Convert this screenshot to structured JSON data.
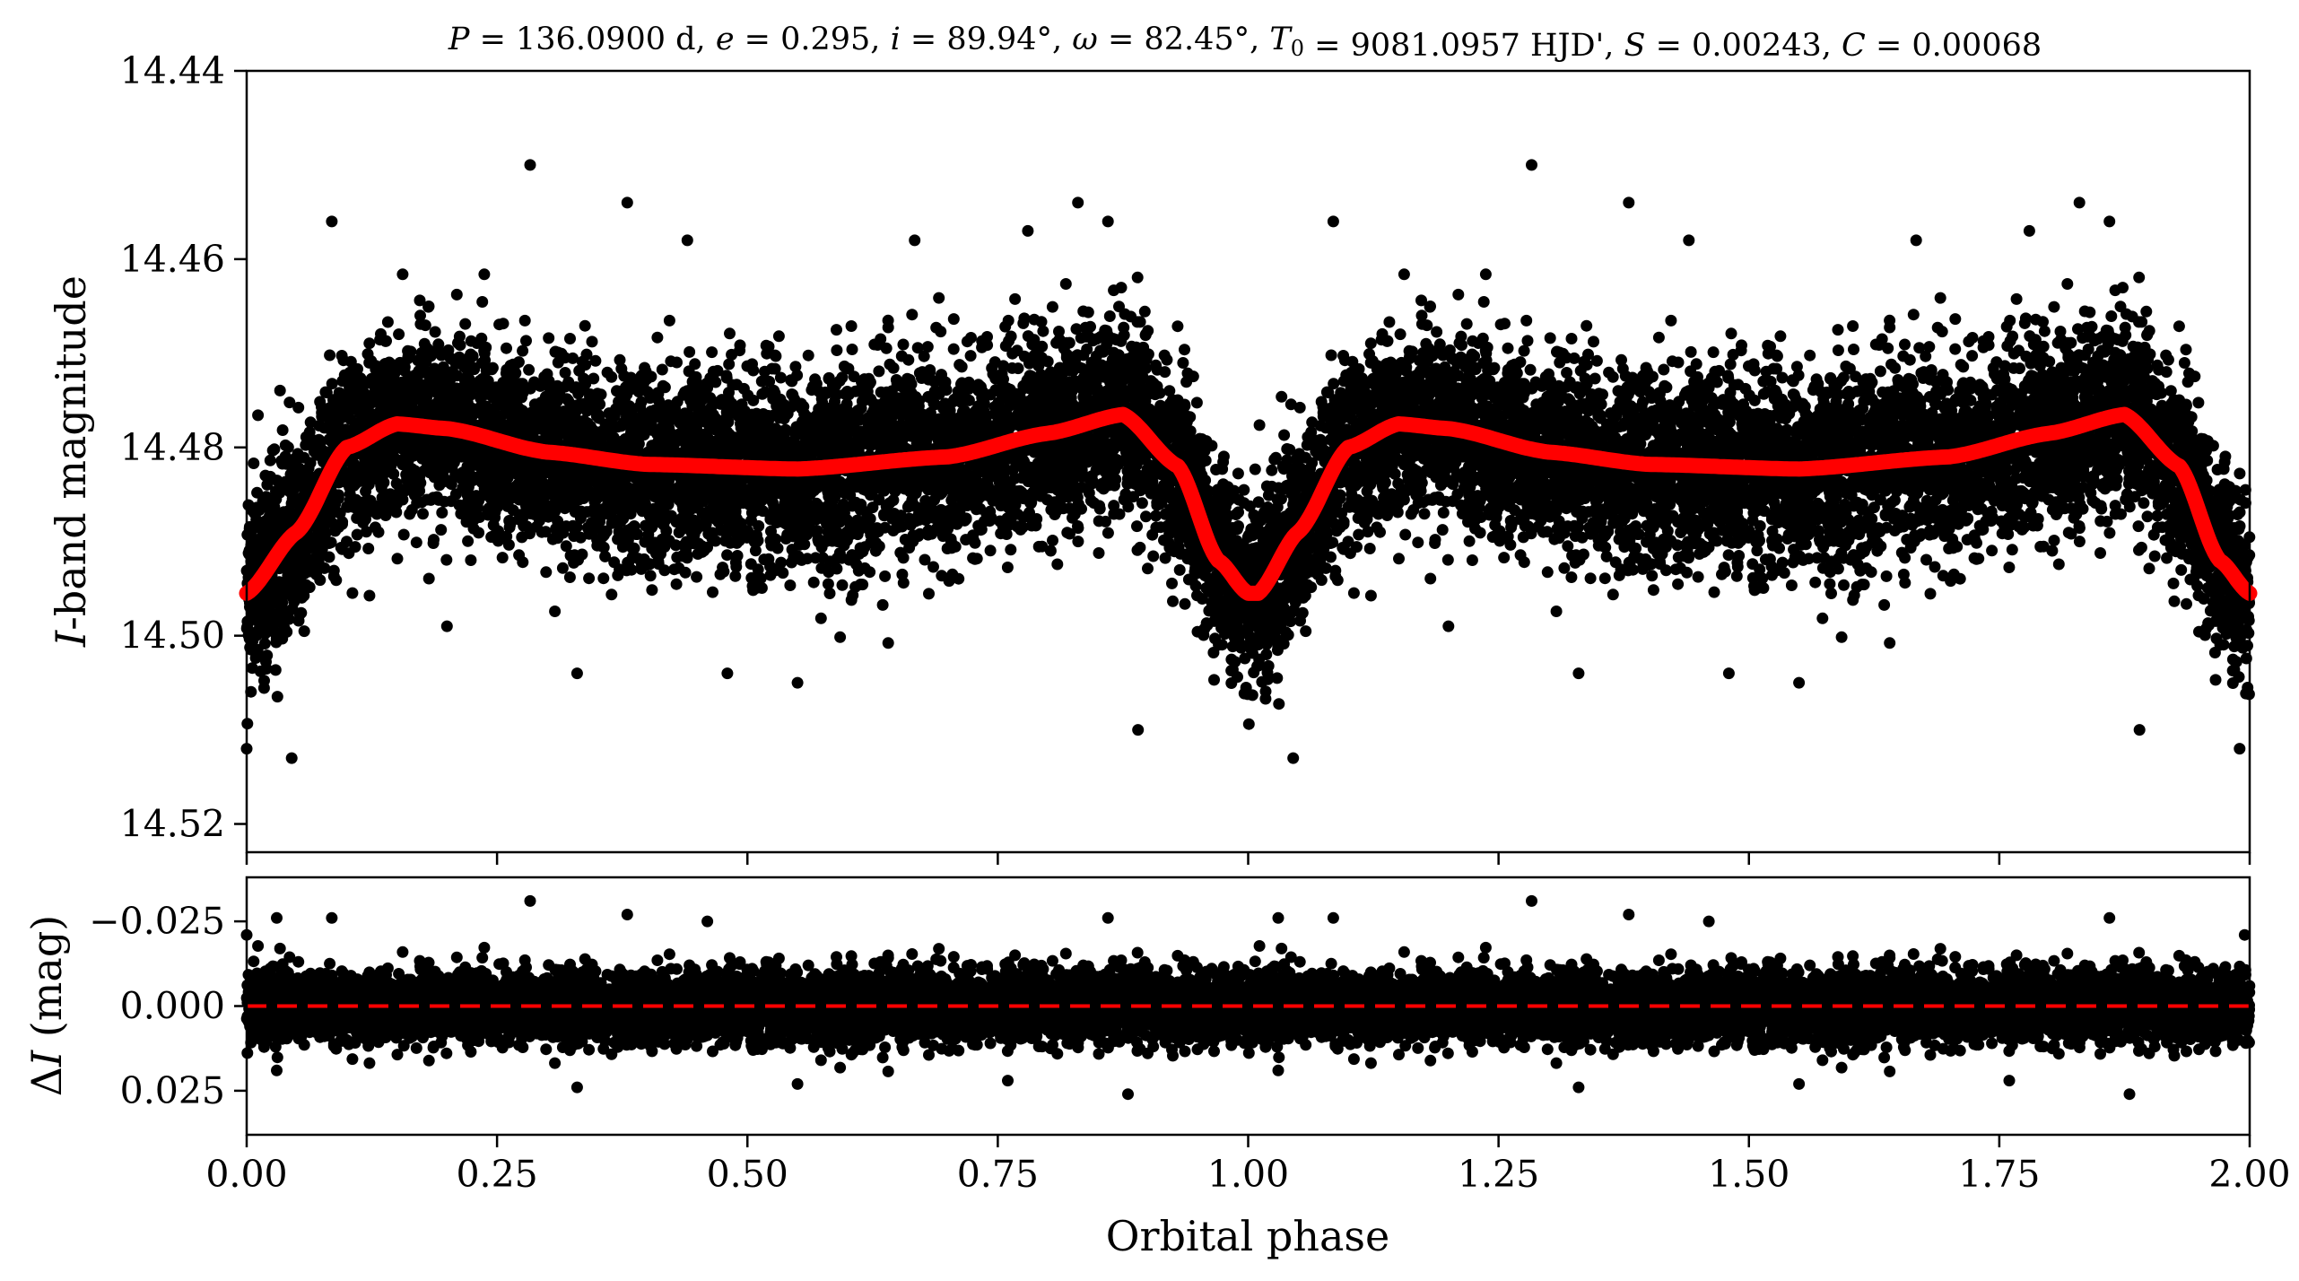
{
  "chart_data": [
    {
      "type": "scatter",
      "title": "P = 136.0900 d, e = 0.295, i = 89.94°, ω = 82.45°, T0 = 9081.0957 HJD', S = 0.00243, C = 0.00068",
      "title_parts": {
        "P": "136.0900 d",
        "e": "0.295",
        "i": "89.94°",
        "omega": "82.45°",
        "T0": "9081.0957 HJD'",
        "S": "0.00243",
        "C": "0.00068"
      },
      "xlabel": "",
      "ylabel": "I-band magnitude",
      "ylabel_italic": "I",
      "ylabel_rest": "-band magnitude",
      "xlim": [
        0.0,
        2.0
      ],
      "ylim": [
        14.44,
        14.523
      ],
      "y_inverted": true,
      "yticks": [
        14.44,
        14.46,
        14.48,
        14.5,
        14.52
      ],
      "ytick_labels": [
        "14.44",
        "14.46",
        "14.48",
        "14.50",
        "14.52"
      ],
      "xticks": [
        0.0,
        0.25,
        0.5,
        0.75,
        1.0,
        1.25,
        1.5,
        1.75,
        2.0
      ],
      "grid": false,
      "legend": "none",
      "series": [
        {
          "kind": "points",
          "color": "#000000",
          "description_values": "dense phase-folded photometry; mean follows model curve with ~0.006 mag scatter",
          "scatter_sigma": 0.006,
          "outliers": [
            [
              0.283,
              14.45
            ],
            [
              1.283,
              14.45
            ],
            [
              0.38,
              14.454
            ],
            [
              1.38,
              14.454
            ],
            [
              0.83,
              14.454
            ],
            [
              1.83,
              14.454
            ],
            [
              0.085,
              14.456
            ],
            [
              1.085,
              14.456
            ],
            [
              0.86,
              14.456
            ],
            [
              1.86,
              14.456
            ],
            [
              0.667,
              14.458
            ],
            [
              1.667,
              14.458
            ],
            [
              0.78,
              14.457
            ],
            [
              1.78,
              14.457
            ],
            [
              0.44,
              14.458
            ],
            [
              1.44,
              14.458
            ],
            [
              0.045,
              14.513
            ],
            [
              1.045,
              14.513
            ],
            [
              0.0,
              14.512
            ],
            [
              1.99,
              14.512
            ],
            [
              0.33,
              14.504
            ],
            [
              1.33,
              14.504
            ],
            [
              0.55,
              14.505
            ],
            [
              1.55,
              14.505
            ],
            [
              0.89,
              14.51
            ],
            [
              1.89,
              14.51
            ],
            [
              0.2,
              14.499
            ],
            [
              1.2,
              14.499
            ],
            [
              0.48,
              14.504
            ],
            [
              1.48,
              14.504
            ]
          ]
        },
        {
          "kind": "model",
          "color": "#ff0000",
          "x": [
            0.0,
            0.05,
            0.1,
            0.15,
            0.2,
            0.3,
            0.4,
            0.55,
            0.7,
            0.8,
            0.875,
            0.93,
            0.97,
            1.0,
            1.01,
            1.05,
            1.1,
            1.15,
            1.2,
            1.3,
            1.4,
            1.55,
            1.7,
            1.8,
            1.875,
            1.93,
            1.97,
            2.0
          ],
          "y": [
            14.4955,
            14.489,
            14.48,
            14.4775,
            14.478,
            14.4805,
            14.4818,
            14.4823,
            14.481,
            14.4785,
            14.4765,
            14.482,
            14.492,
            14.4955,
            14.4955,
            14.489,
            14.48,
            14.4775,
            14.478,
            14.4805,
            14.4818,
            14.4823,
            14.481,
            14.4785,
            14.4765,
            14.482,
            14.492,
            14.4955
          ]
        }
      ]
    },
    {
      "type": "scatter",
      "xlabel": "Orbital phase",
      "ylabel": "ΔI (mag)",
      "ylabel_symbol": "Δ",
      "ylabel_italic": "I",
      "ylabel_rest": " (mag)",
      "xlim": [
        0.0,
        2.0
      ],
      "ylim": [
        -0.038,
        0.038
      ],
      "y_inverted": true,
      "yticks": [
        -0.025,
        0.0,
        0.025
      ],
      "ytick_labels": [
        "−0.025",
        "0.000",
        "0.025"
      ],
      "xticks": [
        0.0,
        0.25,
        0.5,
        0.75,
        1.0,
        1.25,
        1.5,
        1.75,
        2.0
      ],
      "xtick_labels": [
        "0.00",
        "0.25",
        "0.50",
        "0.75",
        "1.00",
        "1.25",
        "1.50",
        "1.75",
        "2.00"
      ],
      "grid": false,
      "legend": "none",
      "series": [
        {
          "kind": "points",
          "color": "#000000",
          "description_values": "residuals scattered around zero with ~0.006 mag sigma",
          "scatter_sigma": 0.006,
          "outliers": [
            [
              0.283,
              -0.031
            ],
            [
              1.283,
              -0.031
            ],
            [
              0.38,
              -0.027
            ],
            [
              1.38,
              -0.027
            ],
            [
              0.085,
              -0.026
            ],
            [
              1.085,
              -0.026
            ],
            [
              0.03,
              -0.026
            ],
            [
              1.03,
              -0.026
            ],
            [
              0.46,
              -0.025
            ],
            [
              1.46,
              -0.025
            ],
            [
              0.86,
              -0.026
            ],
            [
              1.86,
              -0.026
            ],
            [
              0.0,
              -0.021
            ],
            [
              1.995,
              -0.021
            ],
            [
              0.88,
              0.026
            ],
            [
              1.88,
              0.026
            ],
            [
              0.33,
              0.024
            ],
            [
              1.33,
              0.024
            ],
            [
              0.55,
              0.023
            ],
            [
              1.55,
              0.023
            ],
            [
              0.03,
              0.019
            ],
            [
              1.03,
              0.019
            ],
            [
              0.76,
              0.022
            ],
            [
              1.76,
              0.022
            ]
          ]
        },
        {
          "kind": "zero-line",
          "color": "#ff0000",
          "style": "dashed",
          "y": 0.0
        }
      ]
    }
  ]
}
